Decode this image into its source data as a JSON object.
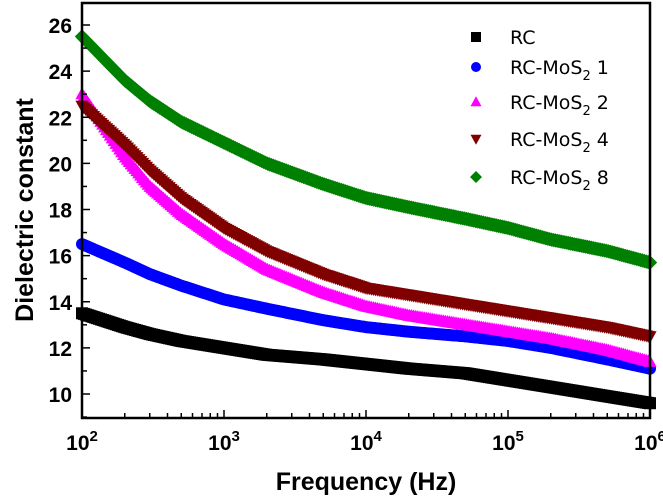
{
  "chart_data": {
    "type": "scatter",
    "title": "",
    "xlabel": "Frequency (Hz)",
    "ylabel": "Dielectric constant",
    "xscale": "log",
    "xlim": [
      100,
      1000000
    ],
    "ylim": [
      9,
      27
    ],
    "x_ticks": [
      {
        "base": "10",
        "exp": "2",
        "value": 100
      },
      {
        "base": "10",
        "exp": "3",
        "value": 1000
      },
      {
        "base": "10",
        "exp": "4",
        "value": 10000
      },
      {
        "base": "10",
        "exp": "5",
        "value": 100000
      },
      {
        "base": "10",
        "exp": "6",
        "value": 1000000
      }
    ],
    "y_ticks": [
      "10",
      "12",
      "14",
      "16",
      "18",
      "20",
      "22",
      "24",
      "26"
    ],
    "grid": false,
    "legend_position": "top-right",
    "x": [
      100,
      200,
      300,
      500,
      1000,
      2000,
      5000,
      10000,
      20000,
      50000,
      100000,
      200000,
      500000,
      1000000
    ],
    "series": [
      {
        "name": "RC",
        "name_parts": [
          "RC",
          "",
          ""
        ],
        "marker": "square",
        "color": "#000000",
        "values": [
          13.5,
          12.9,
          12.6,
          12.3,
          12.0,
          11.7,
          11.5,
          11.3,
          11.1,
          10.9,
          10.6,
          10.3,
          9.9,
          9.6
        ]
      },
      {
        "name": "RC-MoS2 1",
        "name_parts": [
          "RC-MoS",
          "2",
          " 1"
        ],
        "marker": "circle",
        "color": "#0000ff",
        "values": [
          16.5,
          15.7,
          15.2,
          14.7,
          14.1,
          13.7,
          13.2,
          12.9,
          12.7,
          12.5,
          12.3,
          12.0,
          11.5,
          11.1
        ]
      },
      {
        "name": "RC-MoS2 2",
        "name_parts": [
          "RC-MoS",
          "2",
          " 2"
        ],
        "marker": "triangle-up",
        "color": "#ff00ff",
        "values": [
          23.0,
          20.3,
          19.0,
          17.8,
          16.5,
          15.4,
          14.4,
          13.8,
          13.4,
          13.0,
          12.7,
          12.4,
          11.9,
          11.4
        ]
      },
      {
        "name": "RC-MoS2 4",
        "name_parts": [
          "RC-MoS",
          "2",
          " 4"
        ],
        "marker": "triangle-down",
        "color": "#800000",
        "values": [
          22.5,
          20.8,
          19.7,
          18.5,
          17.2,
          16.2,
          15.2,
          14.6,
          14.3,
          13.9,
          13.6,
          13.3,
          12.9,
          12.5
        ]
      },
      {
        "name": "RC-MoS2 8",
        "name_parts": [
          "RC-MoS",
          "2",
          " 8"
        ],
        "marker": "diamond",
        "color": "#008000",
        "values": [
          25.5,
          23.6,
          22.7,
          21.8,
          20.9,
          20.0,
          19.1,
          18.5,
          18.1,
          17.6,
          17.2,
          16.7,
          16.2,
          15.7
        ]
      }
    ]
  }
}
